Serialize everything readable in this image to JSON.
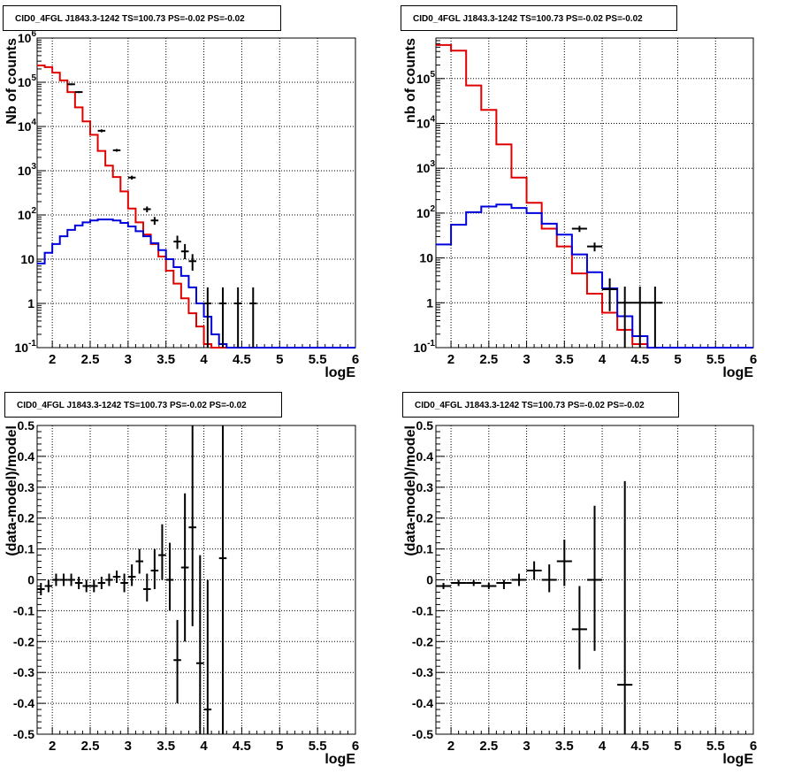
{
  "colors": {
    "data": "#000000",
    "model_total": "#e00000",
    "model_source": "#0000dd",
    "grid": "#000000"
  },
  "chart_data": [
    {
      "id": "top-left",
      "type": "histogram",
      "title": "CID0_4FGL J1843.3-1242 TS=100.73 PS=-0.02 PS=-0.02",
      "xlabel": "logE",
      "ylabel": "Nb of counts",
      "xlim": [
        1.8,
        6.0
      ],
      "ylim": [
        0.1,
        1000000
      ],
      "yscale": "log",
      "grid": true,
      "x_ticks": [
        "2",
        "2.5",
        "3",
        "3.5",
        "4",
        "4.5",
        "5",
        "5.5",
        "6"
      ],
      "y_ticks": [
        {
          "value": 0.1,
          "label": "10",
          "exp": "-1"
        },
        {
          "value": 1,
          "label": "1",
          "exp": ""
        },
        {
          "value": 10,
          "label": "10",
          "exp": ""
        },
        {
          "value": 100,
          "label": "10",
          "exp": "2"
        },
        {
          "value": 1000,
          "label": "10",
          "exp": "3"
        },
        {
          "value": 10000,
          "label": "10",
          "exp": "4"
        },
        {
          "value": 100000,
          "label": "10",
          "exp": "5"
        },
        {
          "value": 1000000,
          "label": "10",
          "exp": "6"
        }
      ],
      "bin_width": 0.1,
      "bin_start": 1.8,
      "series": [
        {
          "role": "model_total",
          "values": [
            240000,
            220000,
            165000,
            110000,
            60000,
            27000,
            13000,
            6500,
            2800,
            1300,
            720,
            340,
            140,
            68,
            36,
            22,
            11.5,
            5.5,
            2.8,
            1.3,
            0.6,
            0.3,
            0.12,
            0.1,
            0.1,
            0.1,
            0.1,
            0.1,
            0.1,
            0.1,
            0.1,
            0.1,
            0.1,
            0.1,
            0.1,
            0.1,
            0.1,
            0.1,
            0.1,
            0.1,
            0.1,
            0.1
          ]
        },
        {
          "role": "model_source",
          "values": [
            8,
            14,
            22,
            33,
            46,
            58,
            68,
            75,
            79,
            79,
            75,
            66,
            55,
            43,
            33,
            23,
            16,
            10,
            6.6,
            4.2,
            2.3,
            1.0,
            0.5,
            0.2,
            0.12,
            0.1,
            0.1,
            0.1,
            0.1,
            0.1,
            0.1,
            0.1,
            0.1,
            0.1,
            0.1,
            0.1,
            0.1,
            0.1,
            0.1,
            0.1,
            0.1,
            0.1
          ]
        }
      ],
      "data_points": [
        {
          "x": 2.25,
          "y": 90000,
          "lo": 86000,
          "hi": 94000
        },
        {
          "x": 2.35,
          "y": 60000,
          "lo": 57000,
          "hi": 63000
        },
        {
          "x": 2.65,
          "y": 8000,
          "lo": 7400,
          "hi": 8600
        },
        {
          "x": 2.85,
          "y": 2900,
          "lo": 2700,
          "hi": 3100
        },
        {
          "x": 3.05,
          "y": 700,
          "lo": 630,
          "hi": 770
        },
        {
          "x": 3.25,
          "y": 135,
          "lo": 115,
          "hi": 155
        },
        {
          "x": 3.35,
          "y": 75,
          "lo": 60,
          "hi": 90
        },
        {
          "x": 3.65,
          "y": 25,
          "lo": 17,
          "hi": 34
        },
        {
          "x": 3.75,
          "y": 15,
          "lo": 10,
          "hi": 22
        },
        {
          "x": 3.85,
          "y": 9,
          "lo": 5.5,
          "hi": 13
        },
        {
          "x": 4.05,
          "y": 1,
          "lo": 0.1,
          "hi": 2.3
        },
        {
          "x": 4.25,
          "y": 1,
          "lo": 0.1,
          "hi": 2.3
        },
        {
          "x": 4.45,
          "y": 1,
          "lo": 0.1,
          "hi": 2.3
        },
        {
          "x": 4.65,
          "y": 1,
          "lo": 0.1,
          "hi": 2.3
        }
      ]
    },
    {
      "id": "top-right",
      "type": "histogram",
      "title": "CID0_4FGL J1843.3-1242 TS=100.73 PS=-0.02 PS=-0.02",
      "xlabel": "logE",
      "ylabel": "nb of counts",
      "xlim": [
        1.8,
        6.0
      ],
      "ylim": [
        0.1,
        800000
      ],
      "yscale": "log",
      "grid": true,
      "x_ticks": [
        "2",
        "2.5",
        "3",
        "3.5",
        "4",
        "4.5",
        "5",
        "5.5",
        "6"
      ],
      "y_ticks": [
        {
          "value": 0.1,
          "label": "10",
          "exp": "-1"
        },
        {
          "value": 1,
          "label": "1",
          "exp": ""
        },
        {
          "value": 10,
          "label": "10",
          "exp": ""
        },
        {
          "value": 100,
          "label": "10",
          "exp": "2"
        },
        {
          "value": 1000,
          "label": "10",
          "exp": "3"
        },
        {
          "value": 10000,
          "label": "10",
          "exp": "4"
        },
        {
          "value": 100000,
          "label": "10",
          "exp": "5"
        }
      ],
      "bin_width": 0.2,
      "bin_start": 1.8,
      "series": [
        {
          "role": "model_total",
          "values": [
            560000,
            420000,
            70000,
            20000,
            3400,
            620,
            170,
            45,
            18,
            4.5,
            1.6,
            0.6,
            0.25,
            0.12,
            0.1,
            0.1,
            0.1,
            0.1,
            0.1,
            0.1,
            0.1
          ]
        },
        {
          "role": "model_source",
          "values": [
            20,
            55,
            105,
            140,
            155,
            130,
            100,
            58,
            33,
            12,
            4.8,
            2.1,
            0.5,
            0.18,
            0.1,
            0.1,
            0.1,
            0.1,
            0.1,
            0.1,
            0.1
          ]
        }
      ],
      "data_points": [
        {
          "x": 3.7,
          "y": 45,
          "lo": 38,
          "hi": 52
        },
        {
          "x": 3.9,
          "y": 18,
          "lo": 14,
          "hi": 22
        },
        {
          "x": 4.1,
          "y": 2,
          "lo": 0.65,
          "hi": 3.5
        },
        {
          "x": 4.3,
          "y": 1,
          "lo": 0.1,
          "hi": 2.3
        },
        {
          "x": 4.5,
          "y": 1,
          "lo": 0.1,
          "hi": 2.3
        },
        {
          "x": 4.7,
          "y": 1,
          "lo": 0.1,
          "hi": 2.3
        }
      ]
    },
    {
      "id": "bottom-left",
      "type": "scatter",
      "title": "CID0_4FGL J1843.3-1242 TS=100.73 PS=-0.02 PS=-0.02",
      "xlabel": "logE",
      "ylabel": "(data-model)/model",
      "xlim": [
        1.8,
        6.0
      ],
      "ylim": [
        -0.5,
        0.5
      ],
      "yscale": "linear",
      "grid": true,
      "x_ticks": [
        "2",
        "2.5",
        "3",
        "3.5",
        "4",
        "4.5",
        "5",
        "5.5",
        "6"
      ],
      "y_ticks": [
        {
          "value": -0.5,
          "label": "-0.5",
          "exp": ""
        },
        {
          "value": -0.4,
          "label": "-0.4",
          "exp": ""
        },
        {
          "value": -0.3,
          "label": "-0.3",
          "exp": ""
        },
        {
          "value": -0.2,
          "label": "-0.2",
          "exp": ""
        },
        {
          "value": -0.1,
          "label": "-0.1",
          "exp": ""
        },
        {
          "value": 0,
          "label": "0",
          "exp": ""
        },
        {
          "value": 0.1,
          "label": "0.1",
          "exp": ""
        },
        {
          "value": 0.2,
          "label": "0.2",
          "exp": ""
        },
        {
          "value": 0.3,
          "label": "0.3",
          "exp": ""
        },
        {
          "value": 0.4,
          "label": "0.4",
          "exp": ""
        },
        {
          "value": 0.5,
          "label": "0.5",
          "exp": ""
        }
      ],
      "xerr": 0.05,
      "series": [],
      "data_points": [
        {
          "x": 1.85,
          "y": -0.03,
          "lo": -0.05,
          "hi": -0.01
        },
        {
          "x": 1.95,
          "y": -0.02,
          "lo": -0.04,
          "hi": 0.0
        },
        {
          "x": 2.05,
          "y": 0.0,
          "lo": -0.02,
          "hi": 0.02
        },
        {
          "x": 2.15,
          "y": 0.0,
          "lo": -0.02,
          "hi": 0.02
        },
        {
          "x": 2.25,
          "y": 0.0,
          "lo": -0.02,
          "hi": 0.02
        },
        {
          "x": 2.35,
          "y": -0.01,
          "lo": -0.03,
          "hi": 0.01
        },
        {
          "x": 2.45,
          "y": -0.02,
          "lo": -0.04,
          "hi": 0.0
        },
        {
          "x": 2.55,
          "y": -0.02,
          "lo": -0.04,
          "hi": 0.0
        },
        {
          "x": 2.65,
          "y": -0.01,
          "lo": -0.03,
          "hi": 0.01
        },
        {
          "x": 2.75,
          "y": 0.0,
          "lo": -0.02,
          "hi": 0.02
        },
        {
          "x": 2.85,
          "y": 0.01,
          "lo": -0.01,
          "hi": 0.03
        },
        {
          "x": 2.95,
          "y": -0.01,
          "lo": -0.04,
          "hi": 0.02
        },
        {
          "x": 3.05,
          "y": 0.01,
          "lo": -0.02,
          "hi": 0.05
        },
        {
          "x": 3.15,
          "y": 0.06,
          "lo": 0.02,
          "hi": 0.1
        },
        {
          "x": 3.25,
          "y": -0.03,
          "lo": -0.07,
          "hi": 0.02
        },
        {
          "x": 3.35,
          "y": 0.03,
          "lo": -0.03,
          "hi": 0.1
        },
        {
          "x": 3.45,
          "y": 0.08,
          "lo": 0.0,
          "hi": 0.18
        },
        {
          "x": 3.55,
          "y": 0.0,
          "lo": -0.1,
          "hi": 0.12
        },
        {
          "x": 3.65,
          "y": -0.26,
          "lo": -0.4,
          "hi": -0.13
        },
        {
          "x": 3.75,
          "y": 0.04,
          "lo": -0.2,
          "hi": 0.28
        },
        {
          "x": 3.85,
          "y": 0.17,
          "lo": -0.15,
          "hi": 0.5
        },
        {
          "x": 3.95,
          "y": -0.27,
          "lo": -0.5,
          "hi": 0.08
        },
        {
          "x": 4.05,
          "y": -0.42,
          "lo": -0.5,
          "hi": 0.0
        },
        {
          "x": 4.25,
          "y": 0.07,
          "lo": -0.5,
          "hi": 0.5
        }
      ]
    },
    {
      "id": "bottom-right",
      "type": "scatter",
      "title": "CID0_4FGL J1843.3-1242 TS=100.73 PS=-0.02 PS=-0.02",
      "xlabel": "logE",
      "ylabel": "(data-model)/model",
      "xlim": [
        1.8,
        6.0
      ],
      "ylim": [
        -0.5,
        0.5
      ],
      "yscale": "linear",
      "grid": true,
      "x_ticks": [
        "2",
        "2.5",
        "3",
        "3.5",
        "4",
        "4.5",
        "5",
        "5.5",
        "6"
      ],
      "y_ticks": [
        {
          "value": -0.5,
          "label": "-0.5",
          "exp": ""
        },
        {
          "value": -0.4,
          "label": "-0.4",
          "exp": ""
        },
        {
          "value": -0.3,
          "label": "-0.3",
          "exp": ""
        },
        {
          "value": -0.2,
          "label": "-0.2",
          "exp": ""
        },
        {
          "value": -0.1,
          "label": "-0.1",
          "exp": ""
        },
        {
          "value": 0,
          "label": "0",
          "exp": ""
        },
        {
          "value": 0.1,
          "label": "0.1",
          "exp": ""
        },
        {
          "value": 0.2,
          "label": "0.2",
          "exp": ""
        },
        {
          "value": 0.3,
          "label": "0.3",
          "exp": ""
        },
        {
          "value": 0.4,
          "label": "0.4",
          "exp": ""
        },
        {
          "value": 0.5,
          "label": "0.5",
          "exp": ""
        }
      ],
      "xerr": 0.1,
      "series": [],
      "data_points": [
        {
          "x": 1.9,
          "y": -0.02,
          "lo": -0.03,
          "hi": -0.01
        },
        {
          "x": 2.1,
          "y": -0.01,
          "lo": -0.02,
          "hi": 0.0
        },
        {
          "x": 2.3,
          "y": -0.01,
          "lo": -0.02,
          "hi": 0.0
        },
        {
          "x": 2.5,
          "y": -0.02,
          "lo": -0.03,
          "hi": -0.01
        },
        {
          "x": 2.7,
          "y": -0.01,
          "lo": -0.03,
          "hi": 0.0
        },
        {
          "x": 2.9,
          "y": 0.0,
          "lo": -0.02,
          "hi": 0.02
        },
        {
          "x": 3.1,
          "y": 0.03,
          "lo": 0.0,
          "hi": 0.06
        },
        {
          "x": 3.3,
          "y": 0.0,
          "lo": -0.04,
          "hi": 0.05
        },
        {
          "x": 3.5,
          "y": 0.06,
          "lo": -0.02,
          "hi": 0.13
        },
        {
          "x": 3.7,
          "y": -0.16,
          "lo": -0.29,
          "hi": -0.02
        },
        {
          "x": 3.9,
          "y": 0.0,
          "lo": -0.23,
          "hi": 0.24
        },
        {
          "x": 4.3,
          "y": -0.34,
          "lo": -0.5,
          "hi": 0.32
        }
      ]
    }
  ]
}
